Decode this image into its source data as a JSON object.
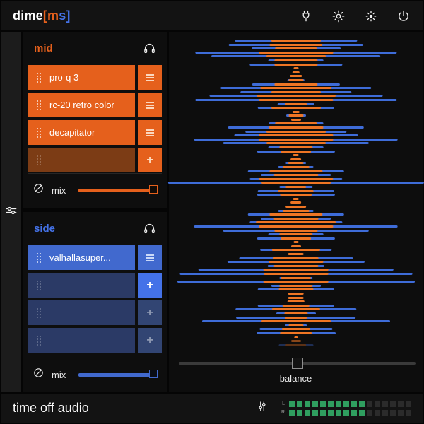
{
  "header": {
    "logo": {
      "part1": "dime",
      "part2": "[m",
      "part3": "s]"
    },
    "icons": [
      "plug-icon",
      "settings-gear-icon",
      "brightness-icon",
      "power-icon"
    ]
  },
  "rail": {
    "icon": "sliders-icon"
  },
  "mid": {
    "title": "mid",
    "solo_icon": "headphones-icon",
    "slots": [
      {
        "label": "pro-q 3",
        "filled": true,
        "action": "menu",
        "highlight": false
      },
      {
        "label": "rc-20 retro color",
        "filled": true,
        "action": "menu",
        "highlight": false
      },
      {
        "label": "decapitator",
        "filled": true,
        "action": "menu",
        "highlight": false
      },
      {
        "label": "",
        "filled": false,
        "action": "add",
        "highlight": false
      }
    ],
    "mix": {
      "label": "mix",
      "icon": "wet-dry-icon",
      "value_pct": 100
    }
  },
  "side": {
    "title": "side",
    "solo_icon": "headphones-icon",
    "slots": [
      {
        "label": "valhallasuper...",
        "filled": true,
        "action": "menu",
        "highlight": false
      },
      {
        "label": "",
        "filled": false,
        "action": "add",
        "highlight": true
      },
      {
        "label": "",
        "filled": false,
        "action": "add",
        "highlight": false
      },
      {
        "label": "",
        "filled": false,
        "action": "add",
        "highlight": false
      }
    ],
    "mix": {
      "label": "mix",
      "icon": "wet-dry-icon",
      "value_pct": 100
    }
  },
  "visualizer": {
    "balance": {
      "label": "balance",
      "value_pct": 50
    },
    "rows": [
      [
        99,
        40
      ],
      [
        109,
        43
      ],
      [
        72,
        34
      ],
      [
        163,
        60
      ],
      [
        137,
        48
      ],
      [
        45,
        35
      ],
      [
        75,
        35
      ],
      [
        0,
        4
      ],
      [
        0,
        6
      ],
      [
        0,
        10
      ],
      [
        14,
        12
      ],
      [
        71,
        35
      ],
      [
        122,
        58
      ],
      [
        90,
        40
      ],
      [
        140,
        64
      ],
      [
        163,
        60
      ],
      [
        30,
        18
      ],
      [
        62,
        40
      ],
      [
        0,
        6
      ],
      [
        16,
        12
      ],
      [
        0,
        8
      ],
      [
        44,
        34
      ],
      [
        110,
        44
      ],
      [
        82,
        48
      ],
      [
        100,
        60
      ],
      [
        165,
        60
      ],
      [
        118,
        48
      ],
      [
        45,
        27
      ],
      [
        63,
        25
      ],
      [
        0,
        5
      ],
      [
        0,
        9
      ],
      [
        17,
        13
      ],
      [
        29,
        22
      ],
      [
        78,
        43
      ],
      [
        57,
        36
      ],
      [
        75,
        60
      ],
      [
        207,
        56
      ],
      [
        27,
        17
      ],
      [
        62,
        29
      ],
      [
        63,
        26
      ],
      [
        0,
        5
      ],
      [
        0,
        9
      ],
      [
        0,
        17
      ],
      [
        29,
        22
      ],
      [
        78,
        43
      ],
      [
        57,
        36
      ],
      [
        75,
        65
      ],
      [
        165,
        60
      ],
      [
        118,
        35
      ],
      [
        45,
        27
      ],
      [
        63,
        25
      ],
      [
        0,
        4
      ],
      [
        0,
        8
      ],
      [
        58,
        39
      ],
      [
        0,
        13
      ],
      [
        92,
        37
      ],
      [
        111,
        44
      ],
      [
        46,
        36
      ],
      [
        158,
        53
      ],
      [
        188,
        52
      ],
      [
        27,
        25
      ],
      [
        192,
        53
      ],
      [
        40,
        27
      ],
      [
        62,
        28
      ],
      [
        0,
        13
      ],
      [
        0,
        13
      ],
      [
        0,
        14
      ],
      [
        62,
        22
      ],
      [
        98,
        39
      ],
      [
        32,
        19
      ],
      [
        97,
        18
      ],
      [
        152,
        56
      ],
      [
        18,
        12
      ],
      [
        59,
        23
      ],
      [
        64,
        26
      ],
      [
        0,
        3
      ],
      [
        0,
        8,
        0.55
      ],
      [
        28,
        17,
        0.35
      ]
    ]
  },
  "footer": {
    "brand": "time off audio",
    "icon": "sliders-icon",
    "meter": {
      "l_label": "L",
      "r_label": "R",
      "segments": 16,
      "lit_l": 10,
      "lit_r": 10
    }
  },
  "colors": {
    "orange": "#e5601c",
    "orange_dim": "#7c3c15",
    "viz_orange": "#ee7524",
    "blue": "#4169ce",
    "blue_bright": "#4472e8",
    "navy": "#2b3a66",
    "navy_button": "#324573",
    "viz_blue": "#3e6cd8",
    "green": "#2f9e5f",
    "meter_off": "#2b2b2b",
    "bar_bg": "#131313",
    "panel_bg": "#0e0e0e",
    "rail_bg": "#1c1c1c",
    "right_bg": "#0d0d0d",
    "track_gray": "#3a3a3a"
  }
}
